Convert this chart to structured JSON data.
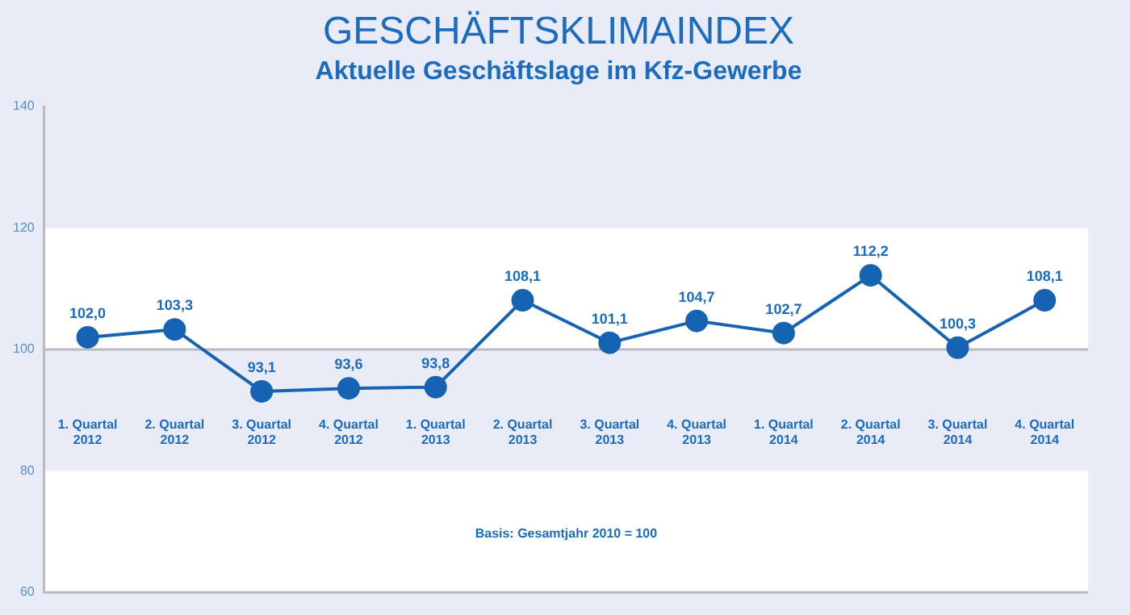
{
  "chart_data": {
    "type": "line",
    "title": "GESCHÄFTSKLIMAINDEX",
    "subtitle": "Aktuelle Geschäftslage im Kfz-Gewerbe",
    "categories": [
      "1. Quartal 2012",
      "2. Quartal 2012",
      "3. Quartal 2012",
      "4. Quartal 2012",
      "1. Quartal 2013",
      "2. Quartal 2013",
      "3. Quartal 2013",
      "4. Quartal 2013",
      "1. Quartal 2014",
      "2. Quartal 2014",
      "3. Quartal 2014",
      "4. Quartal 2014"
    ],
    "series": [
      {
        "color": "#1763b3",
        "values": [
          102.0,
          103.3,
          93.1,
          93.6,
          93.8,
          108.1,
          101.1,
          104.7,
          102.7,
          112.2,
          100.3,
          108.1
        ]
      }
    ],
    "value_labels": [
      "102,0",
      "103,3",
      "93,1",
      "93,6",
      "93,8",
      "108,1",
      "101,1",
      "104,7",
      "102,7",
      "112,2",
      "100,3",
      "108,1"
    ],
    "ylim": [
      60,
      140
    ],
    "yticks": [
      60,
      80,
      100,
      120,
      140
    ],
    "bands": [
      {
        "axis": "y",
        "from": 100,
        "to": 120,
        "color": "#ffffff"
      },
      {
        "axis": "y",
        "from": 60,
        "to": 80,
        "color": "#ffffff"
      }
    ],
    "ref_lines": [
      {
        "axis": "y",
        "value": 100,
        "color": "#b8bac4"
      }
    ],
    "annotations": [
      "Basis: Gesamtjahr 2010 = 100"
    ],
    "marker": "circle",
    "line_style": "solid",
    "grid": false,
    "legend": false
  }
}
